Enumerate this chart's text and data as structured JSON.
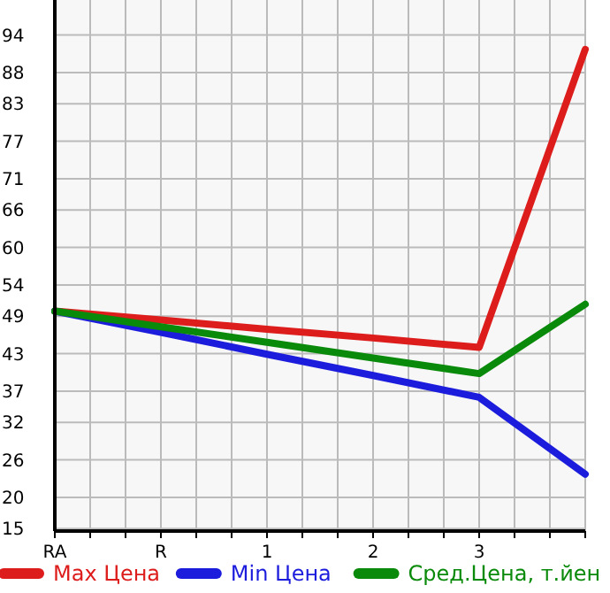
{
  "chart_data": {
    "type": "line",
    "categories": [
      "RA",
      "R",
      "1",
      "2",
      "3",
      null
    ],
    "series": [
      {
        "name": "Max Цена",
        "color": "#dd1c1c",
        "values": [
          49.8,
          48.4,
          46.9,
          45.5,
          44.0,
          91.7
        ]
      },
      {
        "name": "Min Цена",
        "color": "#1c1cdd",
        "values": [
          49.8,
          46.4,
          42.9,
          39.5,
          36.0,
          23.7
        ]
      },
      {
        "name": "Сред.Цена, т.йен",
        "color": "#0a8a0a",
        "values": [
          49.8,
          47.3,
          44.8,
          42.3,
          39.8,
          50.9
        ]
      }
    ],
    "ylim": [
      14.6,
      99.6
    ],
    "yticks": [
      15,
      20,
      26,
      32,
      37,
      43,
      49,
      54,
      60,
      66,
      71,
      77,
      83,
      88,
      94
    ],
    "grid": true,
    "legend": "bottom",
    "marker": "none",
    "line_style": "solid"
  }
}
